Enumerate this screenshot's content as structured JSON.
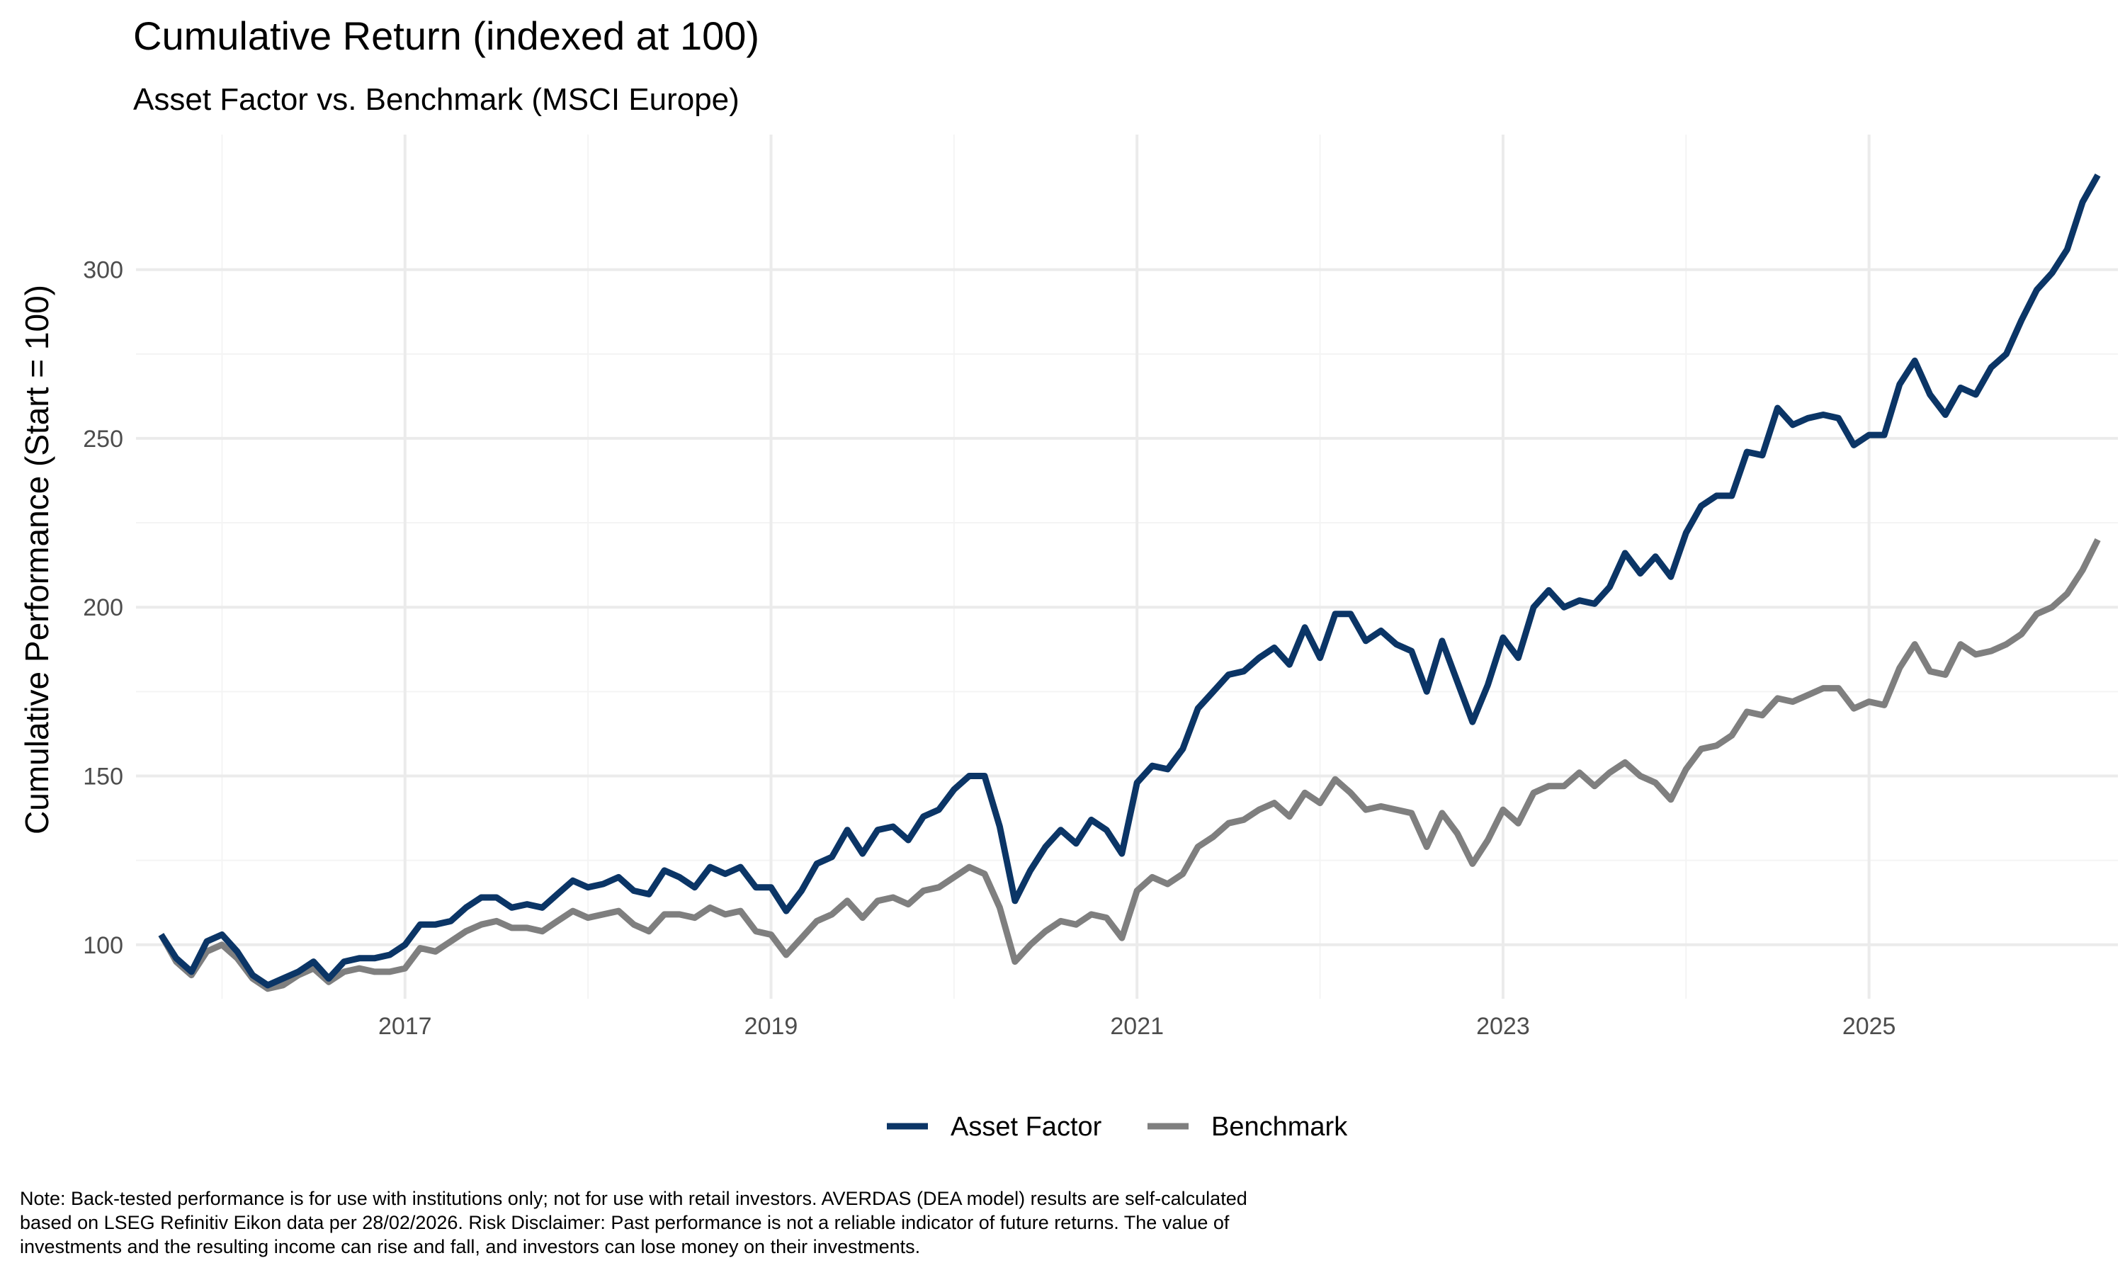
{
  "chart_data": {
    "type": "line",
    "title": "Cumulative Return (indexed at 100)",
    "subtitle": "Asset Factor vs. Benchmark (MSCI Europe)",
    "xlabel": "",
    "ylabel": "Cumulative Performance (Start = 100)",
    "x_ticks": [
      "2017",
      "2019",
      "2021",
      "2023",
      "2025"
    ],
    "y_ticks": [
      100,
      150,
      200,
      250,
      300
    ],
    "xlim": [
      2015.53,
      2026.36
    ],
    "ylim": [
      84,
      340
    ],
    "grid": true,
    "legend_position": "bottom",
    "series": [
      {
        "name": "Asset Factor",
        "color": "#0b3566",
        "points": [
          [
            2015.667,
            103
          ],
          [
            2015.75,
            96
          ],
          [
            2015.833,
            92
          ],
          [
            2015.917,
            101
          ],
          [
            2016.0,
            103
          ],
          [
            2016.083,
            98
          ],
          [
            2016.167,
            91
          ],
          [
            2016.25,
            88
          ],
          [
            2016.333,
            90
          ],
          [
            2016.417,
            92
          ],
          [
            2016.5,
            95
          ],
          [
            2016.583,
            90
          ],
          [
            2016.667,
            95
          ],
          [
            2016.75,
            96
          ],
          [
            2016.833,
            96
          ],
          [
            2016.917,
            97
          ],
          [
            2017.0,
            100
          ],
          [
            2017.083,
            106
          ],
          [
            2017.167,
            106
          ],
          [
            2017.25,
            107
          ],
          [
            2017.333,
            111
          ],
          [
            2017.417,
            114
          ],
          [
            2017.5,
            114
          ],
          [
            2017.583,
            111
          ],
          [
            2017.667,
            112
          ],
          [
            2017.75,
            111
          ],
          [
            2017.833,
            115
          ],
          [
            2017.917,
            119
          ],
          [
            2018.0,
            117
          ],
          [
            2018.083,
            118
          ],
          [
            2018.167,
            120
          ],
          [
            2018.25,
            116
          ],
          [
            2018.333,
            115
          ],
          [
            2018.417,
            122
          ],
          [
            2018.5,
            120
          ],
          [
            2018.583,
            117
          ],
          [
            2018.667,
            123
          ],
          [
            2018.75,
            121
          ],
          [
            2018.833,
            123
          ],
          [
            2018.917,
            117
          ],
          [
            2019.0,
            117
          ],
          [
            2019.083,
            110
          ],
          [
            2019.167,
            116
          ],
          [
            2019.25,
            124
          ],
          [
            2019.333,
            126
          ],
          [
            2019.417,
            134
          ],
          [
            2019.5,
            127
          ],
          [
            2019.583,
            134
          ],
          [
            2019.667,
            135
          ],
          [
            2019.75,
            131
          ],
          [
            2019.833,
            138
          ],
          [
            2019.917,
            140
          ],
          [
            2020.0,
            146
          ],
          [
            2020.083,
            150
          ],
          [
            2020.167,
            150
          ],
          [
            2020.25,
            135
          ],
          [
            2020.333,
            113
          ],
          [
            2020.417,
            122
          ],
          [
            2020.5,
            129
          ],
          [
            2020.583,
            134
          ],
          [
            2020.667,
            130
          ],
          [
            2020.75,
            137
          ],
          [
            2020.833,
            134
          ],
          [
            2020.917,
            127
          ],
          [
            2021.0,
            148
          ],
          [
            2021.083,
            153
          ],
          [
            2021.167,
            152
          ],
          [
            2021.25,
            158
          ],
          [
            2021.333,
            170
          ],
          [
            2021.417,
            175
          ],
          [
            2021.5,
            180
          ],
          [
            2021.583,
            181
          ],
          [
            2021.667,
            185
          ],
          [
            2021.75,
            188
          ],
          [
            2021.833,
            183
          ],
          [
            2021.917,
            194
          ],
          [
            2022.0,
            185
          ],
          [
            2022.083,
            198
          ],
          [
            2022.167,
            198
          ],
          [
            2022.25,
            190
          ],
          [
            2022.333,
            193
          ],
          [
            2022.417,
            189
          ],
          [
            2022.5,
            187
          ],
          [
            2022.583,
            175
          ],
          [
            2022.667,
            190
          ],
          [
            2022.75,
            178
          ],
          [
            2022.833,
            166
          ],
          [
            2022.917,
            177
          ],
          [
            2023.0,
            191
          ],
          [
            2023.083,
            185
          ],
          [
            2023.167,
            200
          ],
          [
            2023.25,
            205
          ],
          [
            2023.333,
            200
          ],
          [
            2023.417,
            202
          ],
          [
            2023.5,
            201
          ],
          [
            2023.583,
            206
          ],
          [
            2023.667,
            216
          ],
          [
            2023.75,
            210
          ],
          [
            2023.833,
            215
          ],
          [
            2023.917,
            209
          ],
          [
            2024.0,
            222
          ],
          [
            2024.083,
            230
          ],
          [
            2024.167,
            233
          ],
          [
            2024.25,
            233
          ],
          [
            2024.333,
            246
          ],
          [
            2024.417,
            245
          ],
          [
            2024.5,
            259
          ],
          [
            2024.583,
            254
          ],
          [
            2024.667,
            256
          ],
          [
            2024.75,
            257
          ],
          [
            2024.833,
            256
          ],
          [
            2024.917,
            248
          ],
          [
            2025.0,
            251
          ],
          [
            2025.083,
            251
          ],
          [
            2025.167,
            266
          ],
          [
            2025.25,
            273
          ],
          [
            2025.333,
            263
          ],
          [
            2025.417,
            257
          ],
          [
            2025.5,
            265
          ],
          [
            2025.583,
            263
          ],
          [
            2025.667,
            271
          ],
          [
            2025.75,
            275
          ],
          [
            2025.833,
            285
          ],
          [
            2025.917,
            294
          ],
          [
            2026.0,
            299
          ],
          [
            2026.083,
            306
          ],
          [
            2026.167,
            320
          ],
          [
            2026.25,
            328
          ]
        ]
      },
      {
        "name": "Benchmark",
        "color": "#7f7f7f",
        "points": [
          [
            2015.667,
            103
          ],
          [
            2015.75,
            95
          ],
          [
            2015.833,
            91
          ],
          [
            2015.917,
            98
          ],
          [
            2016.0,
            100
          ],
          [
            2016.083,
            96
          ],
          [
            2016.167,
            90
          ],
          [
            2016.25,
            87
          ],
          [
            2016.333,
            88
          ],
          [
            2016.417,
            91
          ],
          [
            2016.5,
            93
          ],
          [
            2016.583,
            89
          ],
          [
            2016.667,
            92
          ],
          [
            2016.75,
            93
          ],
          [
            2016.833,
            92
          ],
          [
            2016.917,
            92
          ],
          [
            2017.0,
            93
          ],
          [
            2017.083,
            99
          ],
          [
            2017.167,
            98
          ],
          [
            2017.25,
            101
          ],
          [
            2017.333,
            104
          ],
          [
            2017.417,
            106
          ],
          [
            2017.5,
            107
          ],
          [
            2017.583,
            105
          ],
          [
            2017.667,
            105
          ],
          [
            2017.75,
            104
          ],
          [
            2017.833,
            107
          ],
          [
            2017.917,
            110
          ],
          [
            2018.0,
            108
          ],
          [
            2018.083,
            109
          ],
          [
            2018.167,
            110
          ],
          [
            2018.25,
            106
          ],
          [
            2018.333,
            104
          ],
          [
            2018.417,
            109
          ],
          [
            2018.5,
            109
          ],
          [
            2018.583,
            108
          ],
          [
            2018.667,
            111
          ],
          [
            2018.75,
            109
          ],
          [
            2018.833,
            110
          ],
          [
            2018.917,
            104
          ],
          [
            2019.0,
            103
          ],
          [
            2019.083,
            97
          ],
          [
            2019.167,
            102
          ],
          [
            2019.25,
            107
          ],
          [
            2019.333,
            109
          ],
          [
            2019.417,
            113
          ],
          [
            2019.5,
            108
          ],
          [
            2019.583,
            113
          ],
          [
            2019.667,
            114
          ],
          [
            2019.75,
            112
          ],
          [
            2019.833,
            116
          ],
          [
            2019.917,
            117
          ],
          [
            2020.0,
            120
          ],
          [
            2020.083,
            123
          ],
          [
            2020.167,
            121
          ],
          [
            2020.25,
            111
          ],
          [
            2020.333,
            95
          ],
          [
            2020.417,
            100
          ],
          [
            2020.5,
            104
          ],
          [
            2020.583,
            107
          ],
          [
            2020.667,
            106
          ],
          [
            2020.75,
            109
          ],
          [
            2020.833,
            108
          ],
          [
            2020.917,
            102
          ],
          [
            2021.0,
            116
          ],
          [
            2021.083,
            120
          ],
          [
            2021.167,
            118
          ],
          [
            2021.25,
            121
          ],
          [
            2021.333,
            129
          ],
          [
            2021.417,
            132
          ],
          [
            2021.5,
            136
          ],
          [
            2021.583,
            137
          ],
          [
            2021.667,
            140
          ],
          [
            2021.75,
            142
          ],
          [
            2021.833,
            138
          ],
          [
            2021.917,
            145
          ],
          [
            2022.0,
            142
          ],
          [
            2022.083,
            149
          ],
          [
            2022.167,
            145
          ],
          [
            2022.25,
            140
          ],
          [
            2022.333,
            141
          ],
          [
            2022.417,
            140
          ],
          [
            2022.5,
            139
          ],
          [
            2022.583,
            129
          ],
          [
            2022.667,
            139
          ],
          [
            2022.75,
            133
          ],
          [
            2022.833,
            124
          ],
          [
            2022.917,
            131
          ],
          [
            2023.0,
            140
          ],
          [
            2023.083,
            136
          ],
          [
            2023.167,
            145
          ],
          [
            2023.25,
            147
          ],
          [
            2023.333,
            147
          ],
          [
            2023.417,
            151
          ],
          [
            2023.5,
            147
          ],
          [
            2023.583,
            151
          ],
          [
            2023.667,
            154
          ],
          [
            2023.75,
            150
          ],
          [
            2023.833,
            148
          ],
          [
            2023.917,
            143
          ],
          [
            2024.0,
            152
          ],
          [
            2024.083,
            158
          ],
          [
            2024.167,
            159
          ],
          [
            2024.25,
            162
          ],
          [
            2024.333,
            169
          ],
          [
            2024.417,
            168
          ],
          [
            2024.5,
            173
          ],
          [
            2024.583,
            172
          ],
          [
            2024.667,
            174
          ],
          [
            2024.75,
            176
          ],
          [
            2024.833,
            176
          ],
          [
            2024.917,
            170
          ],
          [
            2025.0,
            172
          ],
          [
            2025.083,
            171
          ],
          [
            2025.167,
            182
          ],
          [
            2025.25,
            189
          ],
          [
            2025.333,
            181
          ],
          [
            2025.417,
            180
          ],
          [
            2025.5,
            189
          ],
          [
            2025.583,
            186
          ],
          [
            2025.667,
            187
          ],
          [
            2025.75,
            189
          ],
          [
            2025.833,
            192
          ],
          [
            2025.917,
            198
          ],
          [
            2026.0,
            200
          ],
          [
            2026.083,
            204
          ],
          [
            2026.167,
            211
          ],
          [
            2026.25,
            220
          ]
        ]
      }
    ]
  },
  "note": {
    "line1": "Note: Back-tested performance is for use with institutions only; not for use with retail investors. AVERDAS (DEA model) results are self-calculated",
    "line2": "based on LSEG Refinitiv Eikon data per 28/02/2026. Risk Disclaimer: Past performance is not a reliable indicator of future returns. The value of",
    "line3": "investments and the resulting income can rise and fall, and investors can lose money on their investments."
  }
}
